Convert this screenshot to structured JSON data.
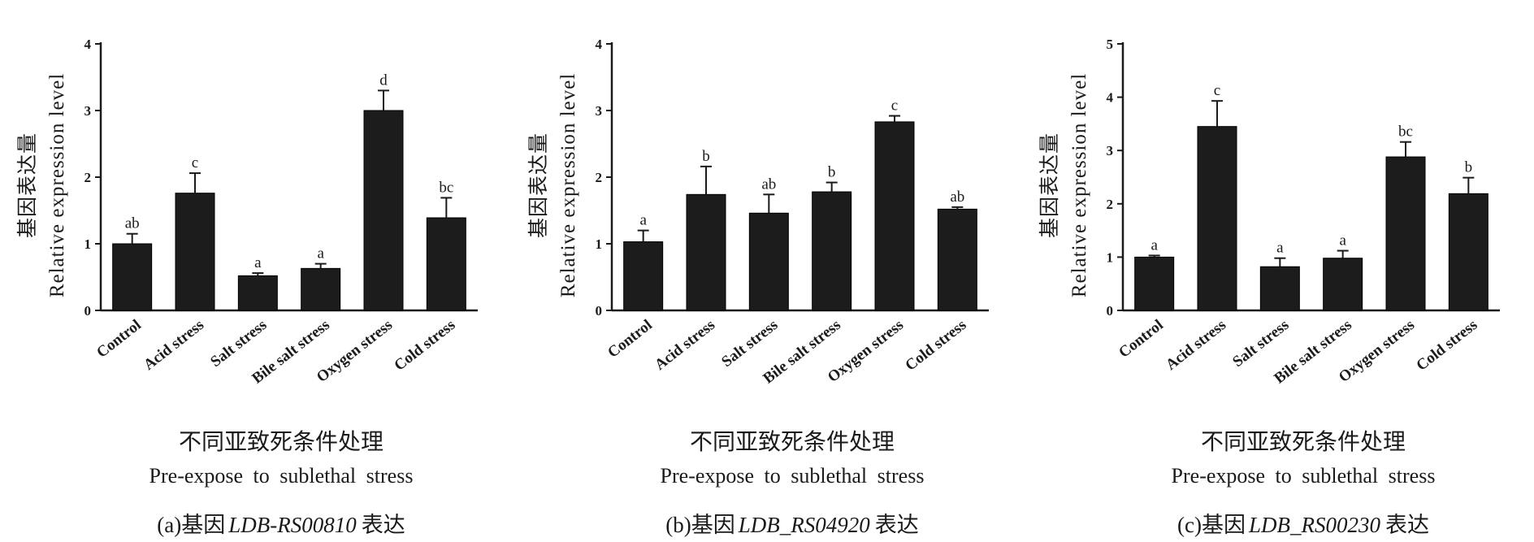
{
  "chart_data": [
    {
      "type": "bar",
      "panel_label": "(a)基因",
      "gene": "LDB-RS00810",
      "caption_suffix": "表达",
      "ylabel_cn": "基因表达量",
      "ylabel_en": "Relative expression level",
      "xlabel_cn": "不同亚致死条件处理",
      "xlabel_en": "Pre-expose to sublethal stress",
      "ylim": [
        0,
        4
      ],
      "yticks": [
        0,
        1,
        2,
        3,
        4
      ],
      "categories": [
        "Control",
        "Acid stress",
        "Salt stress",
        "Bile salt stress",
        "Oxygen stress",
        "Cold stress"
      ],
      "values": [
        1.0,
        1.76,
        0.52,
        0.63,
        3.0,
        1.39
      ],
      "errors": [
        0.15,
        0.3,
        0.04,
        0.07,
        0.3,
        0.3
      ],
      "significance": [
        "ab",
        "c",
        "a",
        "a",
        "d",
        "bc"
      ],
      "bar_color": "#1c1c1c"
    },
    {
      "type": "bar",
      "panel_label": "(b)基因",
      "gene": "LDB_RS04920",
      "caption_suffix": "表达",
      "ylabel_cn": "基因表达量",
      "ylabel_en": "Relative expression level",
      "xlabel_cn": "不同亚致死条件处理",
      "xlabel_en": "Pre-expose to sublethal stress",
      "ylim": [
        0,
        4
      ],
      "yticks": [
        0,
        1,
        2,
        3,
        4
      ],
      "categories": [
        "Control",
        "Acid stress",
        "Salt stress",
        "Bile salt stress",
        "Oxygen stress",
        "Cold stress"
      ],
      "values": [
        1.03,
        1.74,
        1.46,
        1.78,
        2.83,
        1.52
      ],
      "errors": [
        0.17,
        0.42,
        0.28,
        0.14,
        0.09,
        0.03
      ],
      "significance": [
        "a",
        "b",
        "ab",
        "b",
        "c",
        "ab"
      ],
      "bar_color": "#1c1c1c"
    },
    {
      "type": "bar",
      "panel_label": "(c)基因",
      "gene": "LDB_RS00230",
      "caption_suffix": "表达",
      "ylabel_cn": "基因表达量",
      "ylabel_en": "Relative expression level",
      "xlabel_cn": "不同亚致死条件处理",
      "xlabel_en": "Pre-expose to sublethal stress",
      "ylim": [
        0,
        5
      ],
      "yticks": [
        0,
        1,
        2,
        3,
        4,
        5
      ],
      "categories": [
        "Control",
        "Acid stress",
        "Salt stress",
        "Bile salt stress",
        "Oxygen stress",
        "Cold stress"
      ],
      "values": [
        1.0,
        3.45,
        0.82,
        0.98,
        2.88,
        2.19
      ],
      "errors": [
        0.03,
        0.48,
        0.16,
        0.14,
        0.28,
        0.3
      ],
      "significance": [
        "a",
        "c",
        "a",
        "a",
        "bc",
        "b"
      ],
      "bar_color": "#1c1c1c"
    }
  ]
}
